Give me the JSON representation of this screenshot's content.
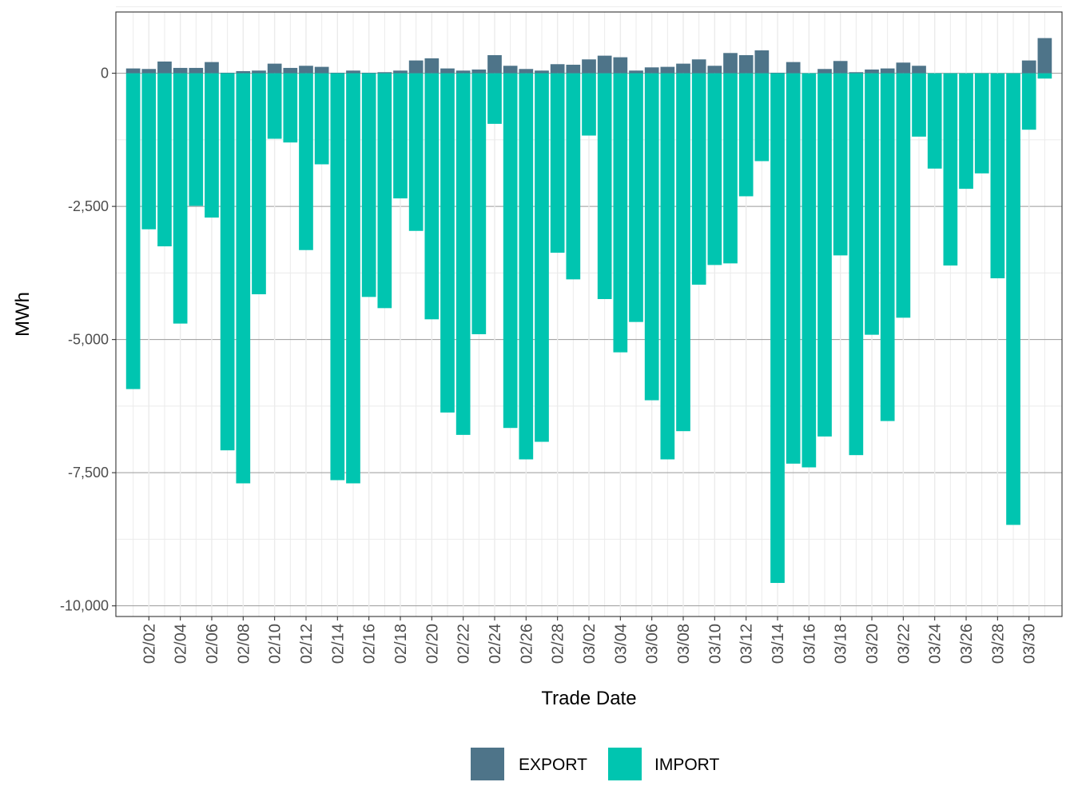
{
  "chart_data": {
    "type": "bar",
    "stacked": true,
    "xlabel": "Trade Date",
    "ylabel": "MWh",
    "ylim": [
      -10200,
      1150
    ],
    "yticks": [
      0,
      -2500,
      -5000,
      -7500,
      -10000
    ],
    "ytick_labels": [
      "0",
      "-2,500",
      "-5,000",
      "-7,500",
      "-10,000"
    ],
    "xtick_labels": [
      "02/02",
      "02/04",
      "02/06",
      "02/08",
      "02/10",
      "02/12",
      "02/14",
      "02/16",
      "02/18",
      "02/20",
      "02/22",
      "02/24",
      "02/26",
      "02/28",
      "03/02",
      "03/04",
      "03/06",
      "03/08",
      "03/10",
      "03/12",
      "03/14",
      "03/16",
      "03/18",
      "03/20",
      "03/22",
      "03/24",
      "03/26",
      "03/28",
      "03/30"
    ],
    "categories": [
      "02/01",
      "02/02",
      "02/03",
      "02/04",
      "02/05",
      "02/06",
      "02/07",
      "02/08",
      "02/09",
      "02/10",
      "02/11",
      "02/12",
      "02/13",
      "02/14",
      "02/15",
      "02/16",
      "02/17",
      "02/18",
      "02/19",
      "02/20",
      "02/21",
      "02/22",
      "02/23",
      "02/24",
      "02/25",
      "02/26",
      "02/27",
      "02/28",
      "03/01",
      "03/02",
      "03/03",
      "03/04",
      "03/05",
      "03/06",
      "03/07",
      "03/08",
      "03/09",
      "03/10",
      "03/11",
      "03/12",
      "03/13",
      "03/14",
      "03/15",
      "03/16",
      "03/17",
      "03/18",
      "03/19",
      "03/20",
      "03/21",
      "03/22",
      "03/23",
      "03/24",
      "03/25",
      "03/26",
      "03/27",
      "03/28",
      "03/29",
      "03/30",
      "03/31"
    ],
    "legend_position": "bottom",
    "grid": true,
    "series": [
      {
        "name": "EXPORT",
        "color": "#4e7489",
        "values": [
          90,
          80,
          220,
          100,
          100,
          210,
          10,
          40,
          50,
          180,
          100,
          140,
          120,
          10,
          50,
          10,
          20,
          50,
          240,
          280,
          90,
          50,
          70,
          340,
          140,
          80,
          50,
          170,
          160,
          260,
          330,
          300,
          50,
          110,
          120,
          180,
          260,
          140,
          380,
          340,
          430,
          10,
          210,
          0,
          80,
          230,
          20,
          70,
          90,
          200,
          140,
          0,
          0,
          0,
          0,
          0,
          0,
          240,
          660
        ]
      },
      {
        "name": "IMPORT",
        "color": "#00c5b0",
        "values": [
          -5930,
          -2930,
          -3250,
          -4700,
          -2490,
          -2710,
          -7080,
          -7700,
          -4150,
          -1230,
          -1300,
          -3320,
          -1710,
          -7640,
          -7700,
          -4200,
          -4410,
          -2350,
          -2960,
          -4620,
          -6370,
          -6790,
          -4900,
          -950,
          -6660,
          -7250,
          -6920,
          -3370,
          -3870,
          -1170,
          -4240,
          -5240,
          -4670,
          -6140,
          -7250,
          -6720,
          -3970,
          -3600,
          -3570,
          -2310,
          -1650,
          -9570,
          -7330,
          -7400,
          -6820,
          -3420,
          -7170,
          -4910,
          -6530,
          -4590,
          -1190,
          -1790,
          -3610,
          -2170,
          -1880,
          -3850,
          -8480,
          -1060,
          -100
        ]
      }
    ]
  }
}
